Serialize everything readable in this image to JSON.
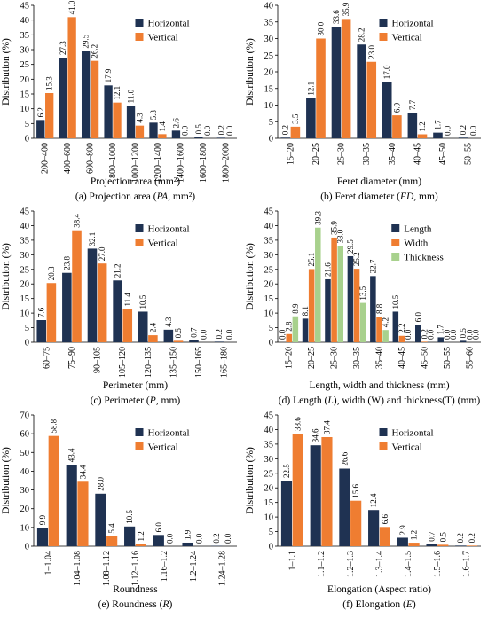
{
  "colors": {
    "horizontal": "#1f3252",
    "vertical": "#ef7d31",
    "length": "#1f3252",
    "width": "#ef7d31",
    "thickness": "#a8d18d"
  },
  "chart_data": [
    {
      "type": "bar",
      "ylabel": "Distribution (%)",
      "xlabel": "Projection area (mm²)",
      "caption": {
        "prefix": "(a) Projection area (",
        "italic": "PA",
        "suffix": ", mm²)"
      },
      "ylim": [
        0,
        45
      ],
      "ystep": 5,
      "categories": [
        "200–400",
        "400–600",
        "600–800",
        "800–1000",
        "1000–1200",
        "1200–1400",
        "1400–1600",
        "1600–1800",
        "1800–2000"
      ],
      "series": [
        {
          "name": "Horizontal",
          "color_key": "horizontal",
          "values": [
            6.2,
            27.3,
            29.5,
            17.9,
            11.0,
            5.3,
            2.6,
            0.5,
            0.2
          ]
        },
        {
          "name": "Vertical",
          "color_key": "vertical",
          "values": [
            15.3,
            41.0,
            26.2,
            12.1,
            4.3,
            1.4,
            0.0,
            0.0,
            0.0
          ]
        }
      ],
      "legend": "top-right"
    },
    {
      "type": "bar",
      "ylabel": "Distribution (%)",
      "xlabel": "Feret diameter (mm)",
      "caption": {
        "prefix": "(b) Feret diameter (",
        "italic": "FD",
        "suffix": ", mm)"
      },
      "ylim": [
        0,
        40
      ],
      "ystep": 5,
      "categories": [
        "15–20",
        "20–25",
        "25–30",
        "30–35",
        "35–40",
        "40–45",
        "45–50",
        "50–55"
      ],
      "series": [
        {
          "name": "Horizontal",
          "color_key": "horizontal",
          "values": [
            0.2,
            12.1,
            33.6,
            28.2,
            17.0,
            7.7,
            1.7,
            0.2
          ]
        },
        {
          "name": "Vertical",
          "color_key": "vertical",
          "values": [
            3.5,
            30.0,
            35.9,
            23.0,
            6.9,
            1.2,
            0.0,
            0.0
          ]
        }
      ],
      "legend": "top-right"
    },
    {
      "type": "bar",
      "ylabel": "Distribution (%)",
      "xlabel": "Perimeter (mm)",
      "caption": {
        "prefix": "(c) Perimeter (",
        "italic": "P",
        "suffix": ", mm)"
      },
      "ylim": [
        0,
        45
      ],
      "ystep": 5,
      "categories": [
        "60–75",
        "75–90",
        "90–105",
        "105–120",
        "120–135",
        "135–150",
        "150–165",
        "165–180"
      ],
      "series": [
        {
          "name": "Horizontal",
          "color_key": "horizontal",
          "values": [
            7.6,
            23.8,
            32.1,
            21.2,
            10.5,
            4.3,
            0.7,
            0.2
          ]
        },
        {
          "name": "Vertical",
          "color_key": "vertical",
          "values": [
            20.3,
            38.4,
            27.0,
            11.4,
            2.4,
            0.5,
            0.0,
            0.0
          ]
        }
      ],
      "legend": "top-right"
    },
    {
      "type": "bar",
      "ylabel": "Distribution (%)",
      "xlabel": "Length, width and thickness (mm)",
      "caption": {
        "prefix": "(d) Length (",
        "italic": "L",
        "suffix": "), width (W) and thickness(T) (mm)"
      },
      "ylim": [
        0,
        45
      ],
      "ystep": 5,
      "categories": [
        "15–20",
        "20–25",
        "25–30",
        "30–35",
        "35–40",
        "40–45",
        "45–50",
        "50–55",
        "55–60"
      ],
      "series": [
        {
          "name": "Length",
          "color_key": "length",
          "values": [
            0.0,
            8.1,
            21.6,
            29.5,
            22.7,
            10.5,
            6.0,
            1.7,
            0.5
          ]
        },
        {
          "name": "Width",
          "color_key": "width",
          "values": [
            2.8,
            25.1,
            35.9,
            25.2,
            8.8,
            2.2,
            0.2,
            0.0,
            0.0
          ]
        },
        {
          "name": "Thickness",
          "color_key": "thickness",
          "values": [
            8.9,
            39.3,
            33.0,
            13.5,
            4.2,
            0.0,
            0.0,
            0.0,
            0.0
          ]
        }
      ],
      "legend": "top-right"
    },
    {
      "type": "bar",
      "ylabel": "Distribution (%)",
      "xlabel": "Roundness",
      "caption": {
        "prefix": "(e) Roundness (",
        "italic": "R",
        "suffix": ")"
      },
      "ylim": [
        0,
        70
      ],
      "ystep": 10,
      "categories": [
        "1–1.04",
        "1.04–1.08",
        "1.08–1.12",
        "1.12–1.16",
        "1.16–1.2",
        "1.2–1.24",
        "1.24–1.28"
      ],
      "series": [
        {
          "name": "Horizontal",
          "color_key": "horizontal",
          "values": [
            9.9,
            43.4,
            28.0,
            10.5,
            6.0,
            1.9,
            0.2
          ]
        },
        {
          "name": "Vertical",
          "color_key": "vertical",
          "values": [
            58.8,
            34.4,
            5.4,
            1.2,
            0.0,
            0.0,
            0.0
          ]
        }
      ],
      "legend": "top-right"
    },
    {
      "type": "bar",
      "ylabel": "Distribution (%)",
      "xlabel": "Elongation (Aspect ratio)",
      "caption": {
        "prefix": "(f) Elongation (",
        "italic": "E",
        "suffix": ")"
      },
      "ylim": [
        0,
        45
      ],
      "ystep": 5,
      "categories": [
        "1–1.1",
        "1.1–1.2",
        "1.2–1.3",
        "1.3–1.4",
        "1.4–1.5",
        "1.5–1.6",
        "1.6–1.7"
      ],
      "series": [
        {
          "name": "Horizontal",
          "color_key": "horizontal",
          "values": [
            22.5,
            34.6,
            26.6,
            12.4,
            2.9,
            0.7,
            0.2
          ]
        },
        {
          "name": "Vertical",
          "color_key": "vertical",
          "values": [
            38.6,
            37.4,
            15.6,
            6.6,
            1.2,
            0.5,
            0.2
          ]
        }
      ],
      "legend": "top-right"
    }
  ]
}
